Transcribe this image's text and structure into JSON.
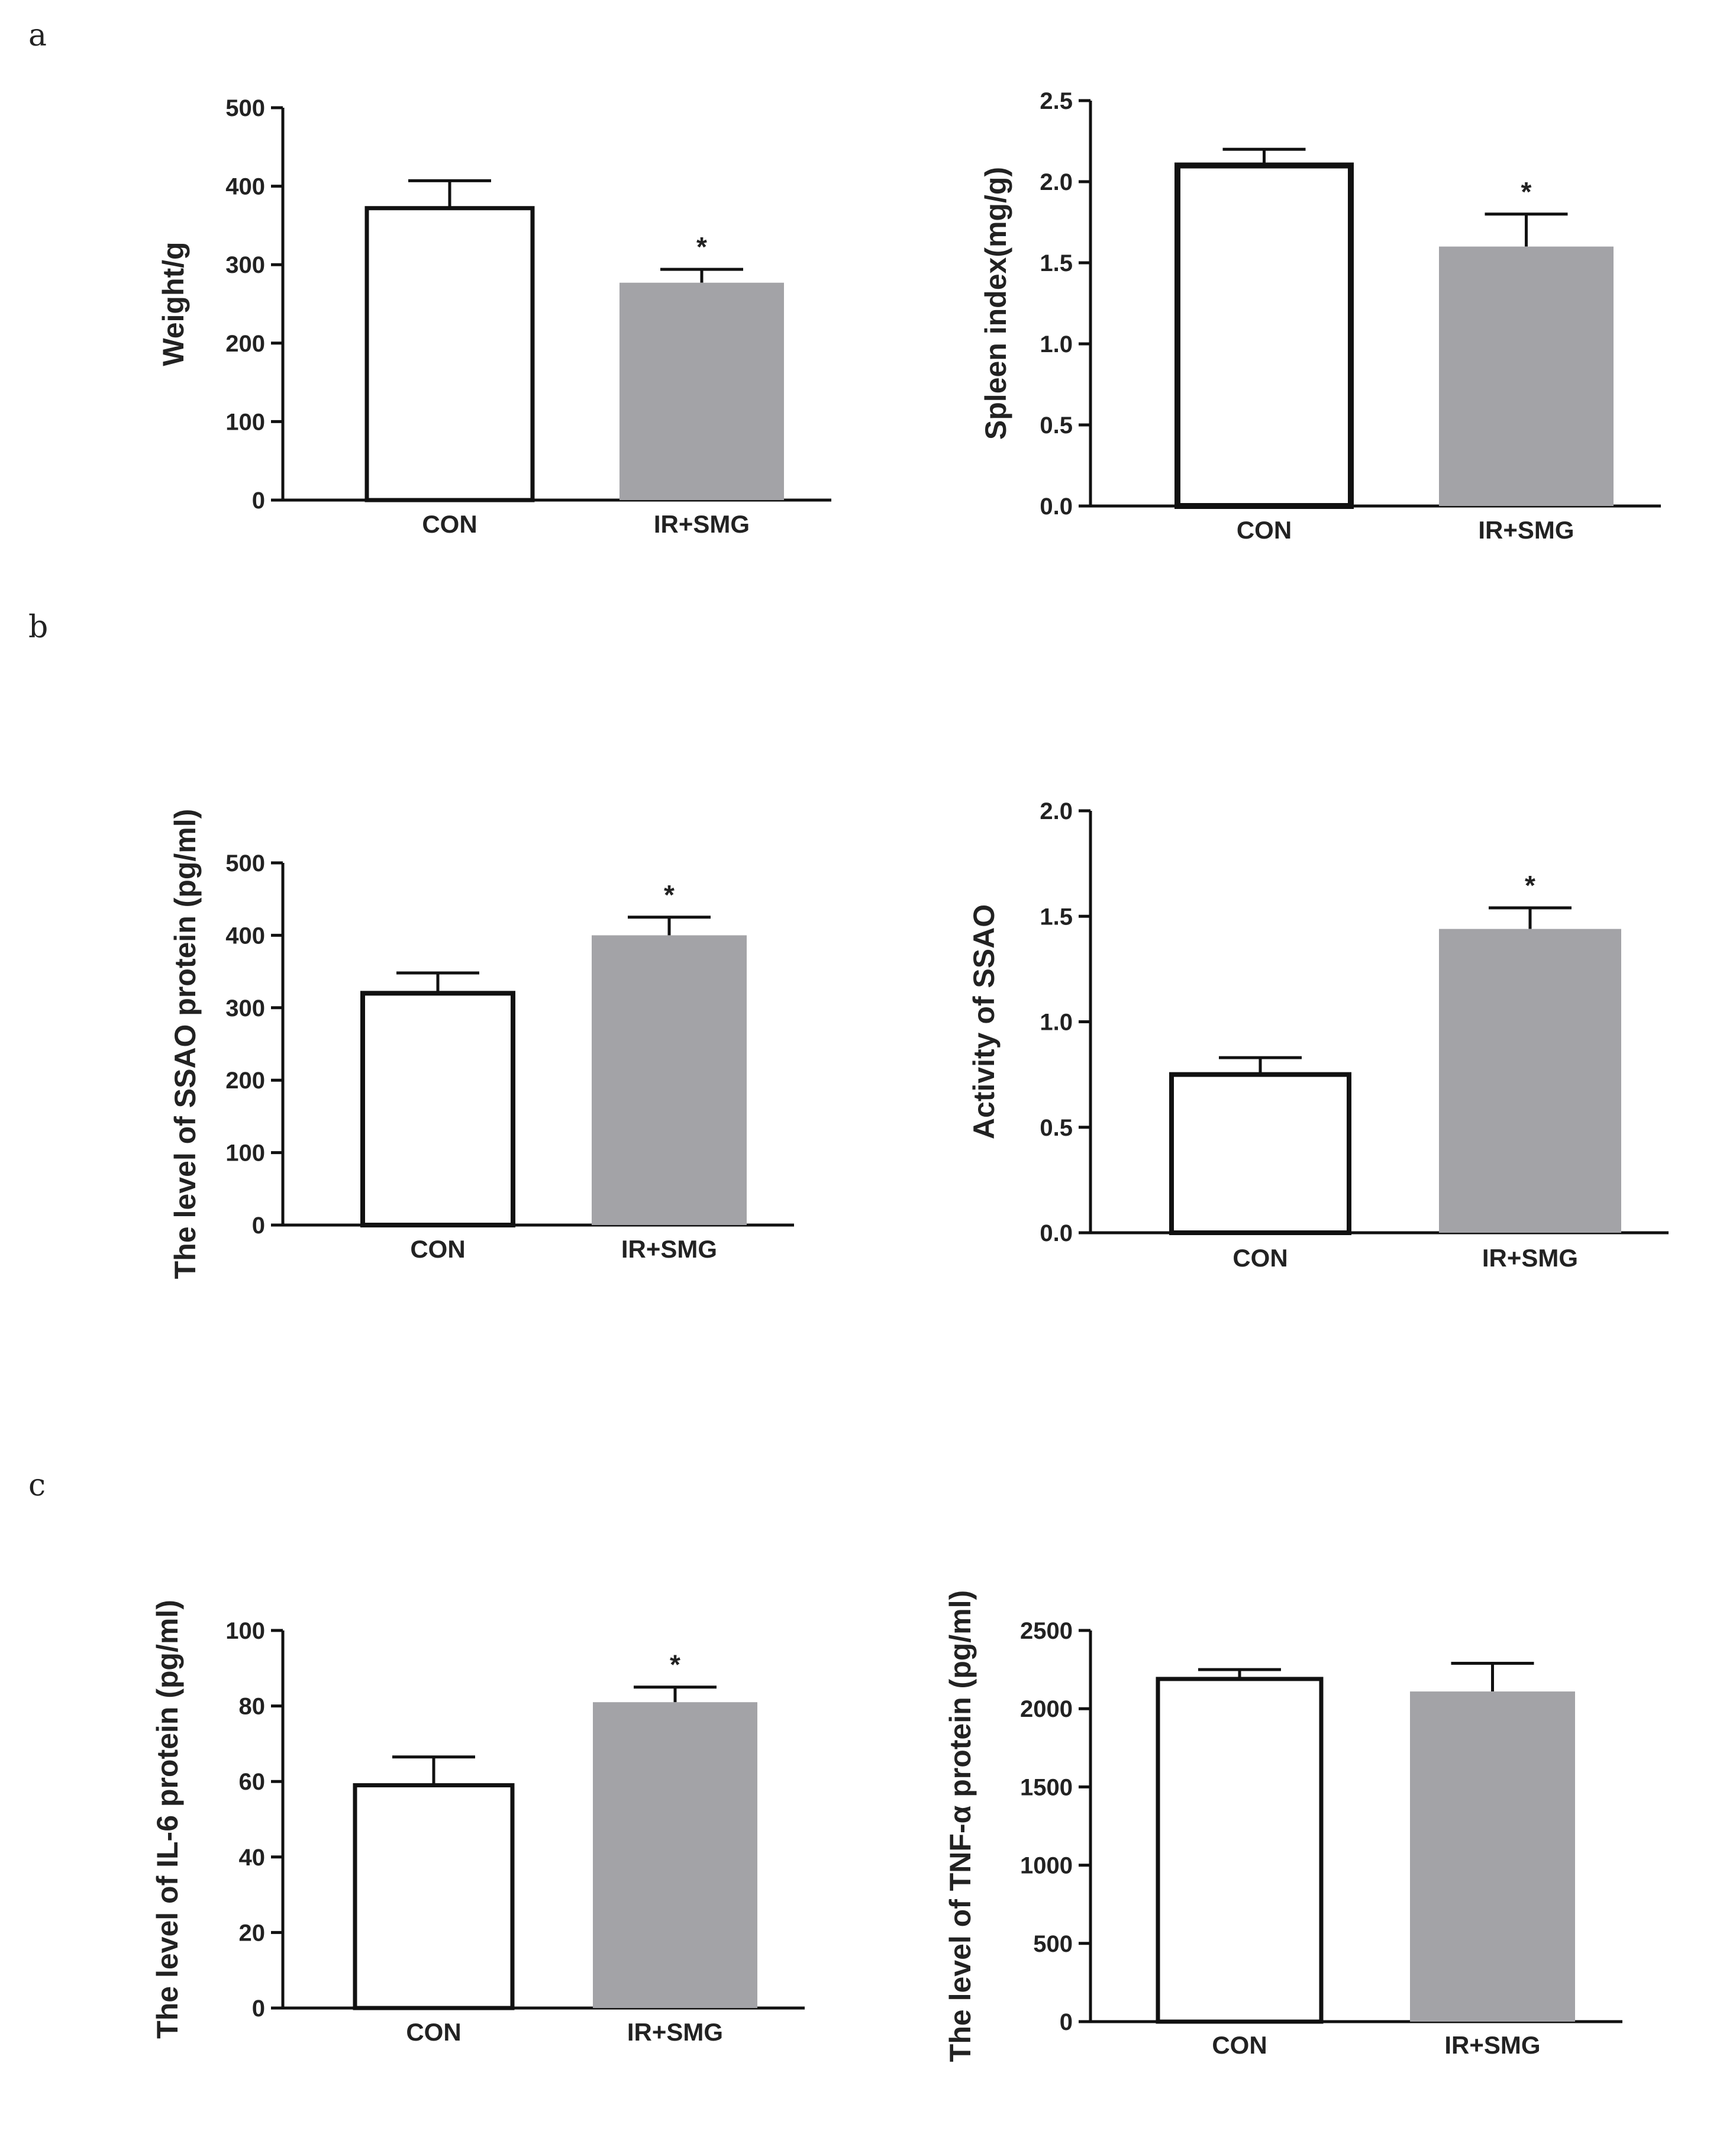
{
  "panels": {
    "a": "a",
    "b": "b",
    "c": "c"
  },
  "colors": {
    "con_fill": "#ffffff",
    "irsmg_fill": "#a3a3a7",
    "stroke": "#111111"
  },
  "chart_data": [
    {
      "type": "bar",
      "panel": "a",
      "categories": [
        "CON",
        "IR+SMG"
      ],
      "values": [
        372,
        277
      ],
      "errors": [
        35,
        17
      ],
      "significance": [
        "",
        "*"
      ],
      "ylabel": "Weight/g",
      "ylim": [
        0,
        500
      ],
      "yticks": [
        "0",
        "100",
        "200",
        "300",
        "400",
        "500"
      ]
    },
    {
      "type": "bar",
      "panel": "a",
      "categories": [
        "CON",
        "IR+SMG"
      ],
      "values": [
        2.1,
        1.6
      ],
      "errors": [
        0.1,
        0.2
      ],
      "significance": [
        "",
        "*"
      ],
      "ylabel": "Spleen index(mg/g)",
      "ylim": [
        0,
        2.5
      ],
      "yticks": [
        "0.0",
        "0.5",
        "1.0",
        "1.5",
        "2.0",
        "2.5"
      ]
    },
    {
      "type": "bar",
      "panel": "b",
      "categories": [
        "CON",
        "IR+SMG"
      ],
      "values": [
        320,
        400
      ],
      "errors": [
        28,
        25
      ],
      "significance": [
        "",
        "*"
      ],
      "ylabel": "The level of  SSAO protein (pg/ml)",
      "ylim": [
        0,
        500
      ],
      "yticks": [
        "0",
        "100",
        "200",
        "300",
        "400",
        "500"
      ]
    },
    {
      "type": "bar",
      "panel": "b",
      "categories": [
        "CON",
        "IR+SMG"
      ],
      "values": [
        0.75,
        1.44
      ],
      "errors": [
        0.08,
        0.1
      ],
      "significance": [
        "",
        "*"
      ],
      "ylabel": "Activity of SSAO",
      "ylim": [
        0,
        2.0
      ],
      "yticks": [
        "0.0",
        "0.5",
        "1.0",
        "1.5",
        "2.0"
      ]
    },
    {
      "type": "bar",
      "panel": "c",
      "categories": [
        "CON",
        "IR+SMG"
      ],
      "values": [
        59,
        81
      ],
      "errors": [
        7.5,
        4
      ],
      "significance": [
        "",
        "*"
      ],
      "ylabel": "The level of IL-6 protein (pg/ml)",
      "ylim": [
        0,
        100
      ],
      "yticks": [
        "0",
        "20",
        "40",
        "60",
        "80",
        "100"
      ]
    },
    {
      "type": "bar",
      "panel": "c",
      "categories": [
        "CON",
        "IR+SMG"
      ],
      "values": [
        2190,
        2110
      ],
      "errors": [
        60,
        180
      ],
      "significance": [
        "",
        ""
      ],
      "ylabel": "The level of TNF-α protein (pg/ml)",
      "ylim": [
        0,
        2500
      ],
      "yticks": [
        "0",
        "500",
        "1000",
        "1500",
        "2000",
        "2500"
      ]
    }
  ]
}
